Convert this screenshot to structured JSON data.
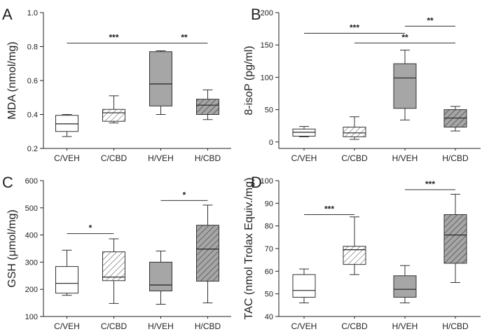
{
  "colors": {
    "white": "#ffffff",
    "gray": "#a6a6a6",
    "line": "#333333"
  },
  "chart_data": [
    {
      "type": "box",
      "panel_label": "A",
      "ylabel": "MDA (nmol/mg)",
      "ylim": [
        0.2,
        1.0
      ],
      "yticks": [
        "0.2",
        "0.4",
        "0.6",
        "0.8",
        "1.0"
      ],
      "categories": [
        "C/VEH",
        "C/CBD",
        "H/VEH",
        "H/CBD"
      ],
      "boxes": [
        {
          "min": 0.27,
          "q1": 0.3,
          "median": 0.345,
          "q3": 0.395,
          "max": 0.4,
          "fill": "white"
        },
        {
          "min": 0.35,
          "q1": 0.36,
          "median": 0.41,
          "q3": 0.43,
          "max": 0.51,
          "fill": "white-hatch"
        },
        {
          "min": 0.4,
          "q1": 0.45,
          "median": 0.58,
          "q3": 0.77,
          "max": 0.775,
          "fill": "gray"
        },
        {
          "min": 0.37,
          "q1": 0.4,
          "median": 0.455,
          "q3": 0.49,
          "max": 0.545,
          "fill": "gray-hatch"
        }
      ],
      "significance": [
        {
          "from": 0,
          "to": 2,
          "label": "***",
          "y": 0.82
        },
        {
          "from": 2,
          "to": 3,
          "label": "**",
          "y": 0.82
        }
      ]
    },
    {
      "type": "box",
      "panel_label": "B",
      "ylabel": "8-isoP (pg/ml)",
      "ylim": [
        -10,
        200
      ],
      "yticks": [
        "0",
        "50",
        "100",
        "150",
        "200"
      ],
      "categories": [
        "C/VEH",
        "C/CBD",
        "H/VEH",
        "H/CBD"
      ],
      "boxes": [
        {
          "min": 8,
          "q1": 9,
          "median": 15,
          "q3": 20,
          "max": 24,
          "fill": "white"
        },
        {
          "min": 4,
          "q1": 8,
          "median": 14,
          "q3": 23,
          "max": 39,
          "fill": "white-hatch"
        },
        {
          "min": 34,
          "q1": 52,
          "median": 99,
          "q3": 121,
          "max": 142,
          "fill": "gray"
        },
        {
          "min": 17,
          "q1": 23,
          "median": 37,
          "q3": 50,
          "max": 55,
          "fill": "gray-hatch"
        }
      ],
      "significance": [
        {
          "from": 0,
          "to": 2,
          "label": "***",
          "y": 168
        },
        {
          "from": 1,
          "to": 3,
          "label": "**",
          "y": 153
        },
        {
          "from": 2,
          "to": 3,
          "label": "**",
          "y": 179
        }
      ]
    },
    {
      "type": "box",
      "panel_label": "C",
      "ylabel": "GSH (μmol/mg)",
      "ylim": [
        100,
        600
      ],
      "yticks": [
        "100",
        "200",
        "300",
        "400",
        "500",
        "600"
      ],
      "categories": [
        "C/VEH",
        "C/CBD",
        "H/VEH",
        "H/CBD"
      ],
      "boxes": [
        {
          "min": 178,
          "q1": 186,
          "median": 222,
          "q3": 284,
          "max": 344,
          "fill": "white"
        },
        {
          "min": 148,
          "q1": 232,
          "median": 245,
          "q3": 338,
          "max": 386,
          "fill": "white-hatch"
        },
        {
          "min": 145,
          "q1": 194,
          "median": 216,
          "q3": 300,
          "max": 341,
          "fill": "gray"
        },
        {
          "min": 150,
          "q1": 230,
          "median": 348,
          "q3": 436,
          "max": 510,
          "fill": "gray-hatch"
        }
      ],
      "significance": [
        {
          "from": 0,
          "to": 1,
          "label": "*",
          "y": 405
        },
        {
          "from": 2,
          "to": 3,
          "label": "*",
          "y": 527
        }
      ]
    },
    {
      "type": "box",
      "panel_label": "D",
      "ylabel": "TAC (nmol Trolax Equiv./mg)",
      "ylim": [
        40,
        100
      ],
      "yticks": [
        "40",
        "50",
        "60",
        "70",
        "80",
        "90",
        "100"
      ],
      "categories": [
        "C/VEH",
        "C/CBD",
        "H/VEH",
        "H/CBD"
      ],
      "boxes": [
        {
          "min": 46,
          "q1": 48.5,
          "median": 51.5,
          "q3": 58.5,
          "max": 61,
          "fill": "white"
        },
        {
          "min": 58.5,
          "q1": 63,
          "median": 69.5,
          "q3": 71,
          "max": 84,
          "fill": "white-hatch"
        },
        {
          "min": 46,
          "q1": 48.5,
          "median": 52,
          "q3": 58,
          "max": 62.5,
          "fill": "gray"
        },
        {
          "min": 55,
          "q1": 63.5,
          "median": 76,
          "q3": 85,
          "max": 94,
          "fill": "gray-hatch"
        }
      ],
      "significance": [
        {
          "from": 0,
          "to": 1,
          "label": "***",
          "y": 85
        },
        {
          "from": 2,
          "to": 3,
          "label": "***",
          "y": 96
        }
      ]
    }
  ]
}
